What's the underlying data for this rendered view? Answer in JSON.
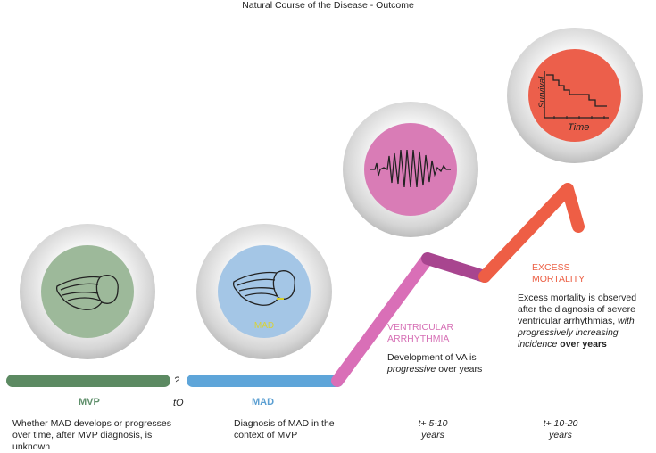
{
  "title": "Natural Course of the Disease - Outcome",
  "colors": {
    "mvp": "#5c8a62",
    "mad": "#5ea5d9",
    "va": "#d96fb7",
    "va_dark": "#a8458f",
    "excess": "#ee5e45"
  },
  "stages": {
    "mvp": {
      "label": "MVP",
      "description": "Whether MAD develops or progresses over time, after MVP diagnosis, is unknown"
    },
    "question": "?",
    "t0": "tO",
    "mad": {
      "label": "MAD",
      "badge": "MAD",
      "description": "Diagnosis of MAD in the context of MVP",
      "years": ""
    },
    "va": {
      "label_line1": "VENTRICULAR",
      "label_line2": "ARRHYTHMIA",
      "desc_part1": "Development of VA is",
      "desc_italic": "progressive",
      "desc_part2": "over years",
      "years_line1": "t+ 5-10",
      "years_line2": "years"
    },
    "excess": {
      "label_line1": "EXCESS",
      "label_line2": "MORTALITY",
      "desc_part1": "Excess mortality is observed after the diagnosis of severe ventricular arrhythmias,",
      "desc_italic": "with progressively increasing incidence",
      "desc_bold": "over years",
      "years_line1": "t+ 10-20",
      "years_line2": "years"
    }
  },
  "icons": {
    "heart": "heart-outline-icon",
    "ecg": "ecg-trace-icon",
    "survival": "survival-curve-icon"
  },
  "survival_chart": {
    "xlabel": "Time",
    "ylabel": "Survival"
  }
}
